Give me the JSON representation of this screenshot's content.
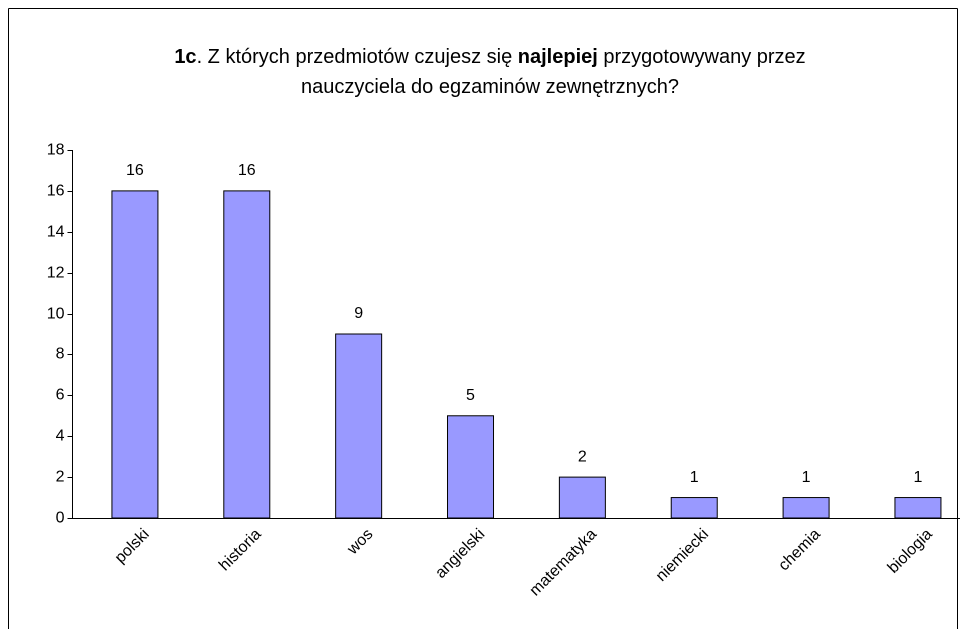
{
  "chart_data": {
    "type": "bar",
    "title": [
      [
        {
          "text": "1c",
          "bold": true
        },
        {
          "text": ". Z których przedmiotów czujesz się "
        },
        {
          "text": "najlepiej",
          "bold": true
        },
        {
          "text": " przygotowywany przez"
        }
      ],
      [
        {
          "text": "nauczyciela do egzaminów zewnętrznych?"
        }
      ]
    ],
    "categories": [
      "polski",
      "historia",
      "wos",
      "angielski",
      "matematyka",
      "niemiecki",
      "chemia",
      "biologia"
    ],
    "values": [
      16,
      16,
      9,
      5,
      2,
      1,
      1,
      1
    ],
    "color": "#9999ff",
    "ylim": [
      0,
      18
    ],
    "yticks": [
      0,
      2,
      4,
      6,
      8,
      10,
      12,
      14,
      16,
      18
    ],
    "grid": false
  }
}
